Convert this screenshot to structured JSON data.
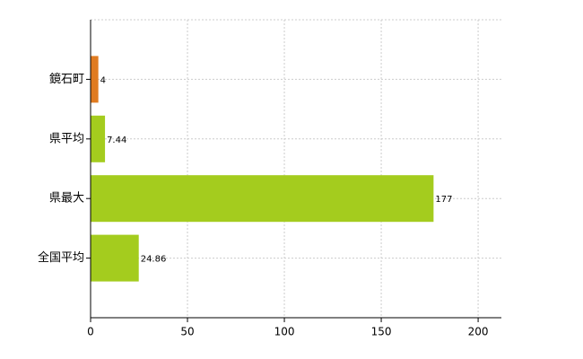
{
  "chart_data": {
    "type": "bar",
    "orientation": "horizontal",
    "categories": [
      "鏡石町",
      "県平均",
      "県最大",
      "全国平均"
    ],
    "values": [
      4,
      7.44,
      177,
      24.86
    ],
    "colors": [
      "#e07b20",
      "#a4cc1e",
      "#a4cc1e",
      "#a4cc1e"
    ],
    "xlim": [
      0,
      212
    ],
    "xticks": [
      0,
      50,
      100,
      150,
      200
    ],
    "grid": true
  }
}
